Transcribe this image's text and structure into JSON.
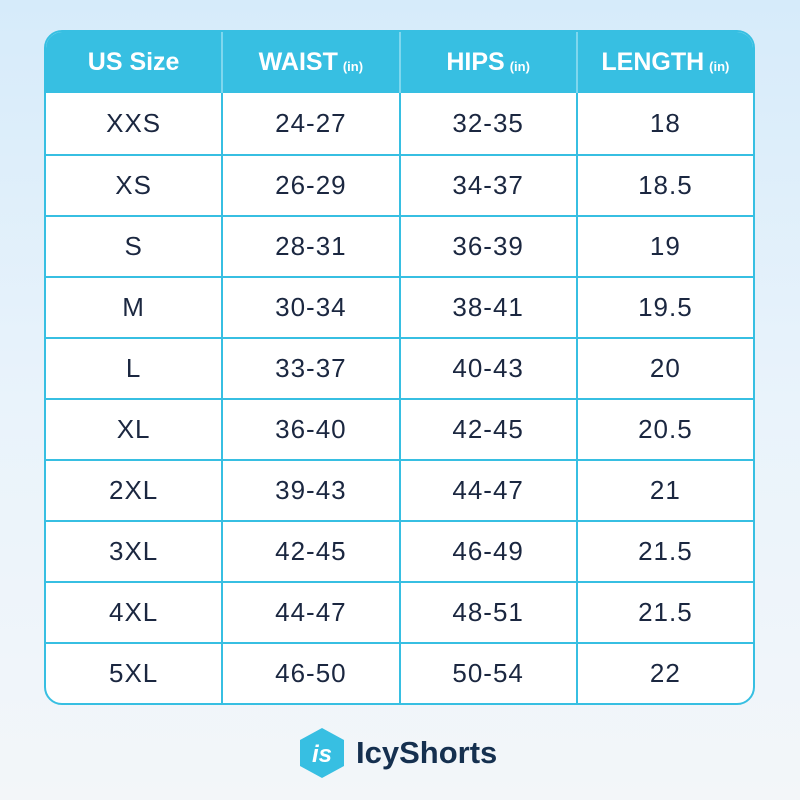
{
  "table": {
    "headers": [
      {
        "label": "US Size",
        "unit": ""
      },
      {
        "label": "WAIST",
        "unit": "(in)"
      },
      {
        "label": "HIPS",
        "unit": "(in)"
      },
      {
        "label": "LENGTH",
        "unit": "(in)"
      }
    ],
    "rows": [
      [
        "XXS",
        "24-27",
        "32-35",
        "18"
      ],
      [
        "XS",
        "26-29",
        "34-37",
        "18.5"
      ],
      [
        "S",
        "28-31",
        "36-39",
        "19"
      ],
      [
        "M",
        "30-34",
        "38-41",
        "19.5"
      ],
      [
        "L",
        "33-37",
        "40-43",
        "20"
      ],
      [
        "XL",
        "36-40",
        "42-45",
        "20.5"
      ],
      [
        "2XL",
        "39-43",
        "44-47",
        "21"
      ],
      [
        "3XL",
        "42-45",
        "46-49",
        "21.5"
      ],
      [
        "4XL",
        "44-47",
        "48-51",
        "21.5"
      ],
      [
        "5XL",
        "46-50",
        "50-54",
        "22"
      ]
    ]
  },
  "brand": {
    "name": "IcyShorts",
    "logo_letters": "is",
    "accent": "#37bfe2",
    "text_color": "#15304f"
  }
}
